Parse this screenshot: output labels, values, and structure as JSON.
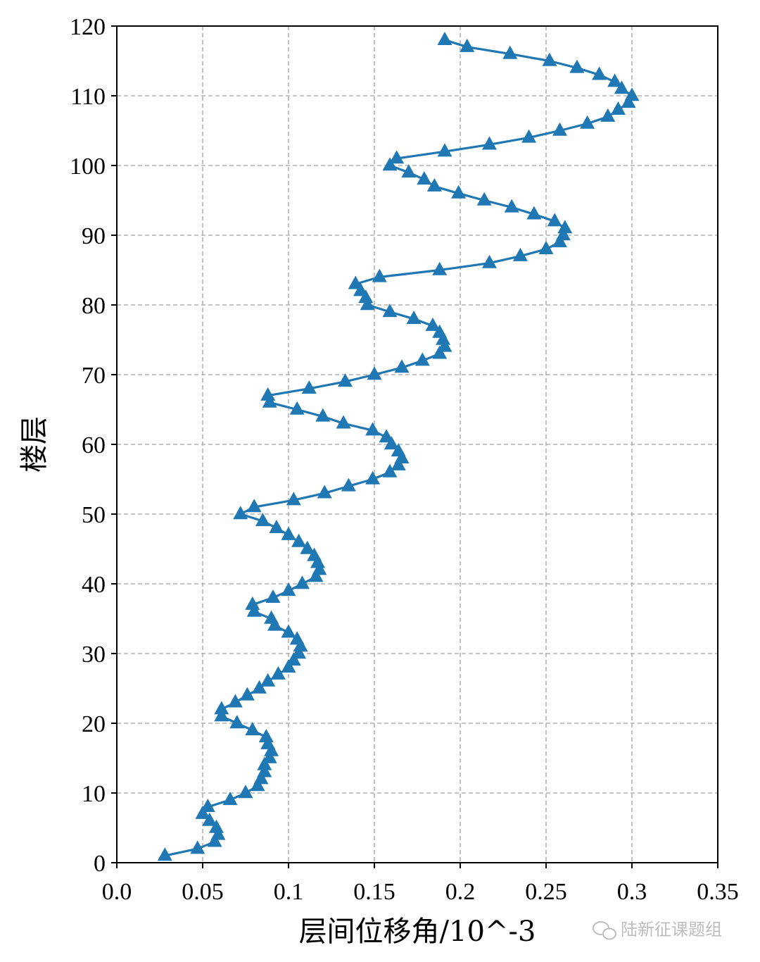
{
  "chart_data": {
    "type": "line",
    "title": "",
    "xlabel": "层间位移角/10^-3",
    "ylabel": "楼层",
    "xlim": [
      0.0,
      0.35
    ],
    "ylim": [
      0,
      120
    ],
    "x_ticks": [
      "0.0",
      "0.05",
      "0.1",
      "0.15",
      "0.2",
      "0.25",
      "0.3",
      "0.35"
    ],
    "y_ticks": [
      "0",
      "10",
      "20",
      "30",
      "40",
      "50",
      "60",
      "70",
      "80",
      "90",
      "100",
      "110",
      "120"
    ],
    "grid": true,
    "marker": "triangle-up",
    "color": "#1f77b4",
    "series": [
      {
        "x": [
          0.028,
          0.047,
          0.057,
          0.059,
          0.058,
          0.054,
          0.05,
          0.053,
          0.066,
          0.075,
          0.082,
          0.084,
          0.086,
          0.086,
          0.089,
          0.09,
          0.088,
          0.087,
          0.079,
          0.07,
          0.061,
          0.061,
          0.069,
          0.076,
          0.083,
          0.088,
          0.094,
          0.1,
          0.103,
          0.106,
          0.107,
          0.105,
          0.1,
          0.092,
          0.09,
          0.08,
          0.079,
          0.091,
          0.1,
          0.108,
          0.116,
          0.118,
          0.117,
          0.115,
          0.111,
          0.106,
          0.1,
          0.093,
          0.085,
          0.072,
          0.08,
          0.103,
          0.121,
          0.135,
          0.149,
          0.159,
          0.164,
          0.166,
          0.164,
          0.16,
          0.157,
          0.149,
          0.132,
          0.12,
          0.105,
          0.089,
          0.088,
          0.112,
          0.133,
          0.15,
          0.166,
          0.178,
          0.188,
          0.191,
          0.19,
          0.188,
          0.184,
          0.173,
          0.159,
          0.146,
          0.145,
          0.142,
          0.139,
          0.153,
          0.188,
          0.217,
          0.235,
          0.25,
          0.258,
          0.26,
          0.261,
          0.255,
          0.243,
          0.23,
          0.214,
          0.199,
          0.185,
          0.179,
          0.17,
          0.159,
          0.163,
          0.191,
          0.217,
          0.24,
          0.258,
          0.274,
          0.286,
          0.292,
          0.298,
          0.3,
          0.294,
          0.29,
          0.281,
          0.268,
          0.252,
          0.229,
          0.204,
          0.191
        ],
        "y": [
          1,
          2,
          3,
          4,
          5,
          6,
          7,
          8,
          9,
          10,
          11,
          12,
          13,
          14,
          15,
          16,
          17,
          18,
          19,
          20,
          21,
          22,
          23,
          24,
          25,
          26,
          27,
          28,
          29,
          30,
          31,
          32,
          33,
          34,
          35,
          36,
          37,
          38,
          39,
          40,
          41,
          42,
          43,
          44,
          45,
          46,
          47,
          48,
          49,
          50,
          51,
          52,
          53,
          54,
          55,
          56,
          57,
          58,
          59,
          60,
          61,
          62,
          63,
          64,
          65,
          66,
          67,
          68,
          69,
          70,
          71,
          72,
          73,
          74,
          75,
          76,
          77,
          78,
          79,
          80,
          81,
          82,
          83,
          84,
          85,
          86,
          87,
          88,
          89,
          90,
          91,
          92,
          93,
          94,
          95,
          96,
          97,
          98,
          99,
          100,
          101,
          102,
          103,
          104,
          105,
          106,
          107,
          108,
          109,
          110,
          111,
          112,
          113,
          114,
          115,
          116,
          117,
          118
        ]
      }
    ]
  },
  "watermark": {
    "icon": "wechat-icon",
    "text": "陆新征课题组"
  }
}
